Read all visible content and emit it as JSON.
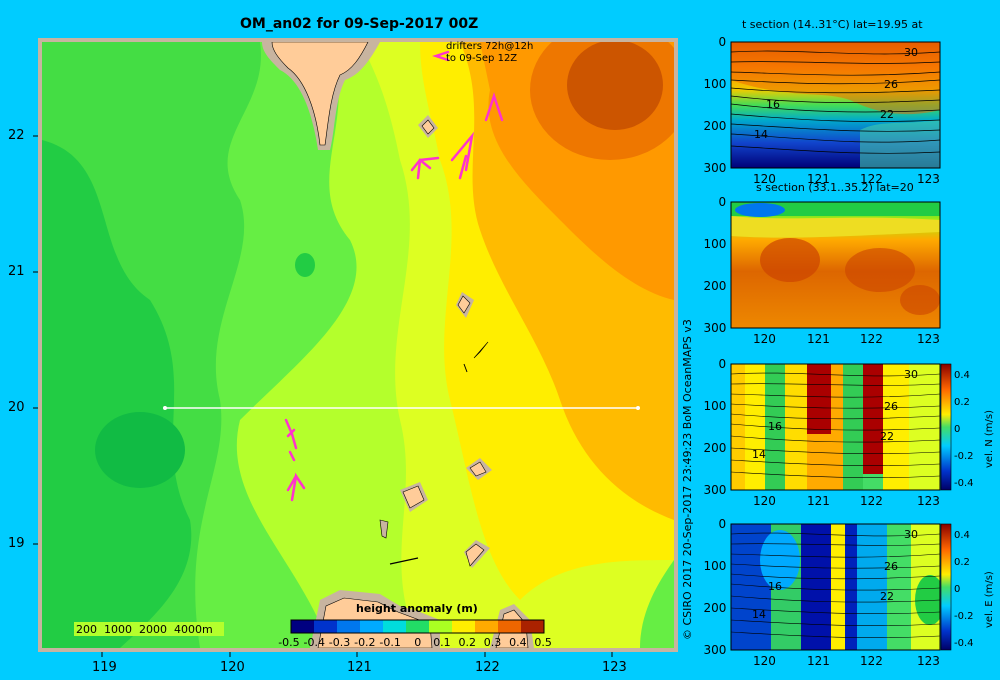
{
  "map": {
    "title": "OM_an02 for 09-Sep-2017 00Z",
    "drifter_line1": "drifters 72h@12h",
    "drifter_line2": "to 09-Sep 12Z",
    "lon_ticks": [
      "119",
      "120",
      "121",
      "122",
      "123"
    ],
    "lat_ticks": [
      "22",
      "21",
      "20",
      "19"
    ],
    "depth_legend": "200  1000  2000  4000m",
    "colorbar_title": "height anomaly  (m)",
    "colorbar_ticks": [
      "-0.5",
      "-0.4",
      "-0.3",
      "-0.2",
      "-0.1",
      "0",
      "0.1",
      "0.2",
      "0.3",
      "0.4",
      "0.5"
    ]
  },
  "credit": "© CSIRO 2017   20-Sep-2017 23:49:23 BoM OceanMAPS v3",
  "panels": [
    {
      "title": "t section (14..31°C) lat=19.95 at",
      "depth_ticks": [
        "0",
        "100",
        "200",
        "300"
      ],
      "lon_ticks": [
        "120",
        "121",
        "122",
        "123"
      ],
      "contour_labels": [
        "30",
        "26",
        "22",
        "16",
        "14"
      ]
    },
    {
      "title": "s section (33.1..35.2) lat=20",
      "depth_ticks": [
        "0",
        "100",
        "200",
        "300"
      ],
      "lon_ticks": [
        "120",
        "121",
        "122",
        "123"
      ]
    },
    {
      "title": "",
      "depth_ticks": [
        "0",
        "100",
        "200",
        "300"
      ],
      "lon_ticks": [
        "120",
        "121",
        "122",
        "123"
      ],
      "contour_labels": [
        "30",
        "26",
        "22",
        "16",
        "14"
      ],
      "cbar_ticks": [
        "0.4",
        "0.2",
        "0",
        "-0.2",
        "-0.4"
      ],
      "cbar_label": "vel. N (m/s)"
    },
    {
      "title": "",
      "depth_ticks": [
        "0",
        "100",
        "200",
        "300"
      ],
      "lon_ticks": [
        "120",
        "121",
        "122",
        "123"
      ],
      "contour_labels": [
        "30",
        "26",
        "22",
        "16",
        "14"
      ],
      "cbar_ticks": [
        "0.4",
        "0.2",
        "0",
        "-0.2",
        "-0.4"
      ],
      "cbar_label": "vel. E (m/s)"
    }
  ]
}
